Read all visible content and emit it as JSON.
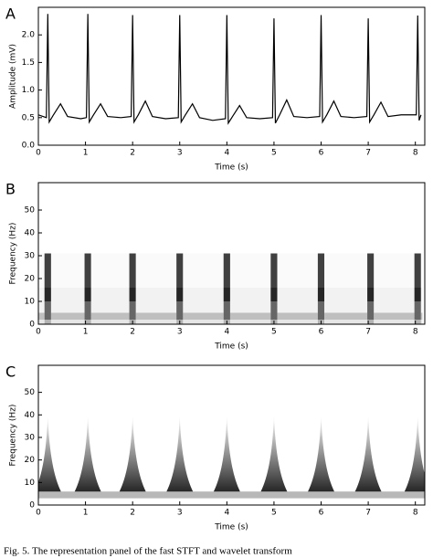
{
  "chart_data": [
    {
      "type": "line",
      "panel": "A",
      "xlabel": "Time (s)",
      "ylabel": "Amplitude (mV)",
      "xlim": [
        0,
        8.2
      ],
      "ylim": [
        0,
        2.5
      ],
      "xticks": [
        0,
        1,
        2,
        3,
        4,
        5,
        6,
        7,
        8
      ],
      "yticks": [
        {
          "value": 0,
          "label": "0.0"
        },
        0.5,
        {
          "value": 1,
          "label": "1.0"
        },
        1.5,
        {
          "value": 2,
          "label": "2.0"
        }
      ],
      "color": "#000000",
      "x": [
        0.0,
        0.17,
        0.2,
        0.23,
        0.32,
        0.47,
        0.62,
        0.9,
        1.02,
        1.05,
        1.08,
        1.17,
        1.32,
        1.47,
        1.75,
        1.97,
        2.0,
        2.03,
        2.12,
        2.27,
        2.42,
        2.7,
        2.97,
        3.0,
        3.03,
        3.12,
        3.27,
        3.42,
        3.7,
        3.97,
        4.0,
        4.03,
        4.12,
        4.27,
        4.42,
        4.7,
        4.97,
        5.0,
        5.03,
        5.12,
        5.27,
        5.42,
        5.7,
        5.97,
        6.0,
        6.03,
        6.12,
        6.27,
        6.42,
        6.7,
        6.97,
        7.0,
        7.03,
        7.12,
        7.27,
        7.42,
        7.7,
        8.02,
        8.05,
        8.08,
        8.12
      ],
      "values": [
        0.55,
        0.5,
        2.38,
        0.42,
        0.55,
        0.75,
        0.52,
        0.48,
        0.5,
        2.38,
        0.42,
        0.55,
        0.75,
        0.52,
        0.5,
        0.52,
        2.36,
        0.42,
        0.55,
        0.8,
        0.52,
        0.48,
        0.5,
        2.36,
        0.42,
        0.55,
        0.75,
        0.5,
        0.45,
        0.48,
        2.36,
        0.4,
        0.52,
        0.72,
        0.5,
        0.48,
        0.5,
        2.3,
        0.4,
        0.55,
        0.82,
        0.52,
        0.5,
        0.52,
        2.36,
        0.42,
        0.55,
        0.8,
        0.52,
        0.5,
        0.52,
        2.3,
        0.42,
        0.55,
        0.78,
        0.52,
        0.55,
        0.55,
        2.35,
        0.45,
        0.55
      ]
    },
    {
      "type": "heatmap",
      "panel": "B",
      "xlabel": "Time (s)",
      "ylabel": "Frequency (Hz)",
      "xlim": [
        0,
        8.2
      ],
      "ylim": [
        0,
        62
      ],
      "xticks": [
        0,
        1,
        2,
        3,
        4,
        5,
        6,
        7,
        8
      ],
      "yticks": [
        0,
        10,
        20,
        30,
        40,
        50
      ],
      "color": "#000000",
      "xbins": [
        0,
        0.13,
        0.27,
        0.98,
        1.12,
        1.93,
        2.07,
        2.93,
        3.07,
        3.93,
        4.07,
        4.93,
        5.07,
        5.93,
        6.07,
        6.98,
        7.12,
        7.98,
        8.12,
        8.15
      ],
      "ybins": [
        0,
        2,
        5,
        10,
        16,
        31
      ],
      "values": [
        [
          0.1,
          0.3,
          0.1,
          0.3,
          0.1,
          0.3,
          0.1,
          0.3,
          0.1,
          0.3,
          0.1,
          0.3,
          0.1,
          0.3,
          0.1,
          0.3,
          0.1,
          0.3,
          0.1
        ],
        [
          0.25,
          0.6,
          0.25,
          0.6,
          0.25,
          0.6,
          0.25,
          0.6,
          0.25,
          0.6,
          0.25,
          0.6,
          0.25,
          0.6,
          0.25,
          0.6,
          0.25,
          0.6,
          0.25
        ],
        [
          0.05,
          0.6,
          0.05,
          0.6,
          0.05,
          0.6,
          0.05,
          0.6,
          0.05,
          0.6,
          0.05,
          0.6,
          0.05,
          0.6,
          0.05,
          0.6,
          0.05,
          0.6,
          0.05
        ],
        [
          0.05,
          0.85,
          0.05,
          0.85,
          0.05,
          0.85,
          0.05,
          0.85,
          0.05,
          0.85,
          0.05,
          0.85,
          0.05,
          0.85,
          0.05,
          0.85,
          0.05,
          0.85,
          0.05
        ],
        [
          0.02,
          0.75,
          0.02,
          0.75,
          0.02,
          0.75,
          0.02,
          0.75,
          0.02,
          0.75,
          0.02,
          0.75,
          0.02,
          0.75,
          0.02,
          0.75,
          0.02,
          0.75,
          0.02
        ]
      ]
    },
    {
      "type": "scalogram",
      "panel": "C",
      "xlabel": "Time (s)",
      "ylabel": "Frequency (Hz)",
      "xlim": [
        0,
        8.2
      ],
      "ylim": [
        0,
        62
      ],
      "xticks": [
        0,
        1,
        2,
        3,
        4,
        5,
        6,
        7,
        8
      ],
      "yticks": [
        0,
        10,
        20,
        30,
        40,
        50
      ],
      "color": "#000000",
      "band": [
        3,
        6
      ],
      "x": [
        0.2,
        1.05,
        2.0,
        3.0,
        4.0,
        5.0,
        6.0,
        7.0,
        8.05
      ],
      "values": [
        40,
        40,
        40,
        40,
        40,
        40,
        40,
        40,
        40
      ]
    }
  ],
  "caption": "Fig. 5.   The representation panel of the fast STFT and wavelet transform"
}
